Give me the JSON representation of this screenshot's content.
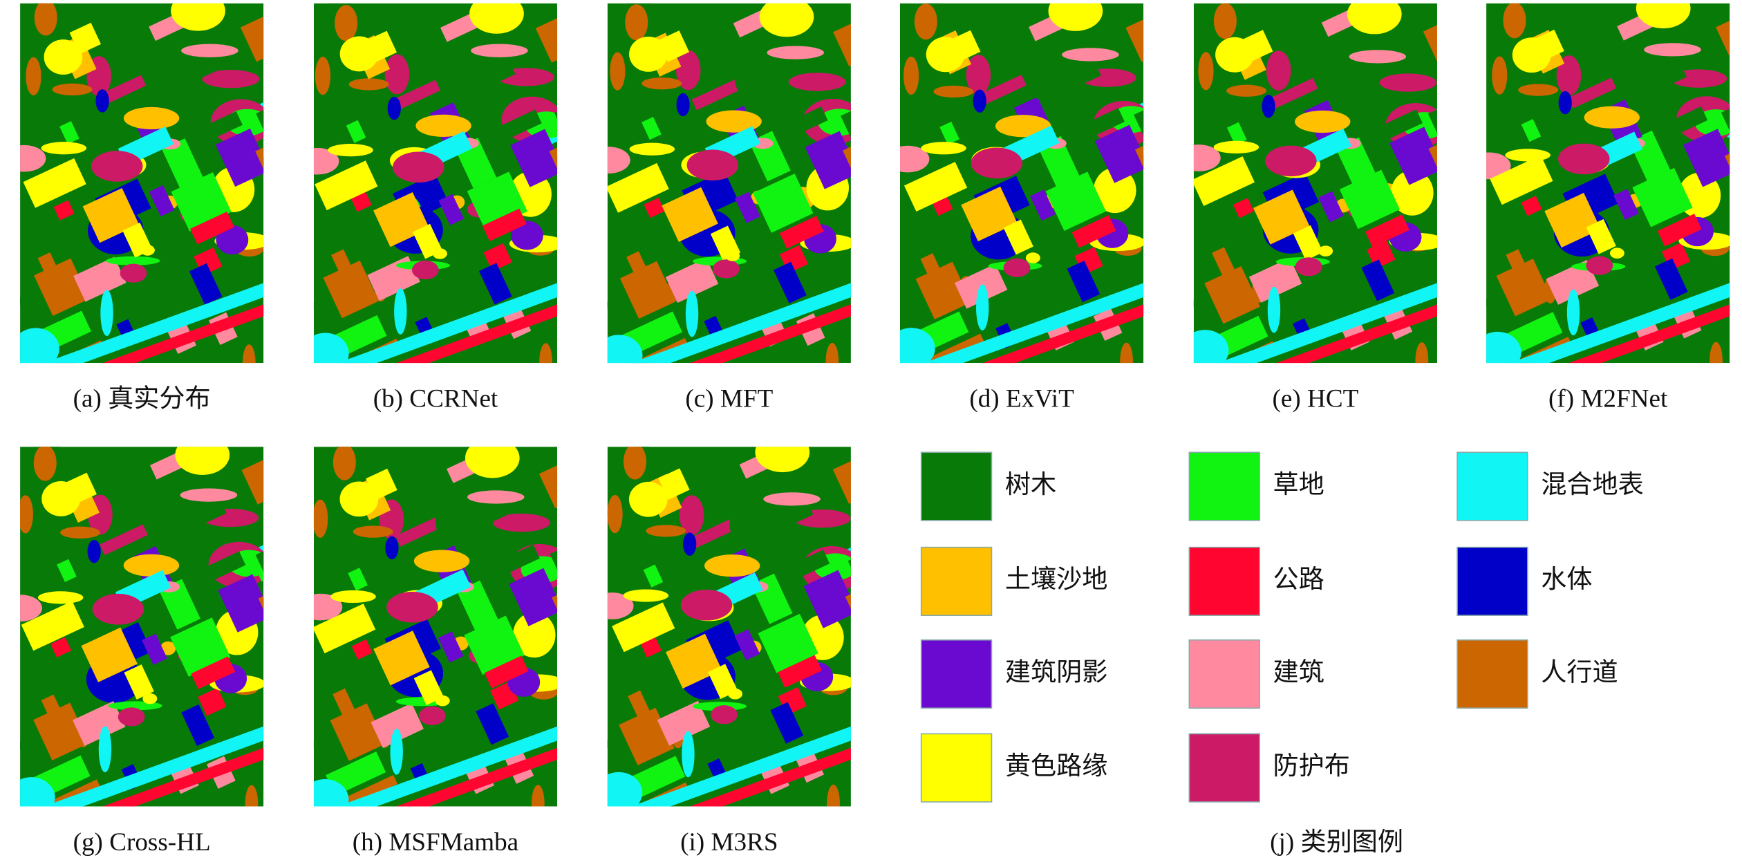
{
  "figure": {
    "panels": [
      {
        "caption": "(a) 真实分布"
      },
      {
        "caption": "(b) CCRNet"
      },
      {
        "caption": "(c) MFT"
      },
      {
        "caption": "(d) ExViT"
      },
      {
        "caption": "(e) HCT"
      },
      {
        "caption": "(f) M2FNet"
      },
      {
        "caption": "(g) Cross-HL"
      },
      {
        "caption": "(h) MSFMamba"
      },
      {
        "caption": "(i) M3RS"
      }
    ],
    "legend": {
      "caption": "(j) 类别图例",
      "items": [
        {
          "label": "树木",
          "color": "#087a08"
        },
        {
          "label": "草地",
          "color": "#11f311"
        },
        {
          "label": "混合地表",
          "color": "#11f5f5"
        },
        {
          "label": "土壤沙地",
          "color": "#ffc000"
        },
        {
          "label": "公路",
          "color": "#ff0530"
        },
        {
          "label": "水体",
          "color": "#0000c8"
        },
        {
          "label": "建筑阴影",
          "color": "#6a0ad0"
        },
        {
          "label": "建筑",
          "color": "#ff8aa0"
        },
        {
          "label": "人行道",
          "color": "#cc6600"
        },
        {
          "label": "黄色路缘",
          "color": "#ffff00"
        },
        {
          "label": "防护布",
          "color": "#cc1a66"
        }
      ]
    }
  }
}
